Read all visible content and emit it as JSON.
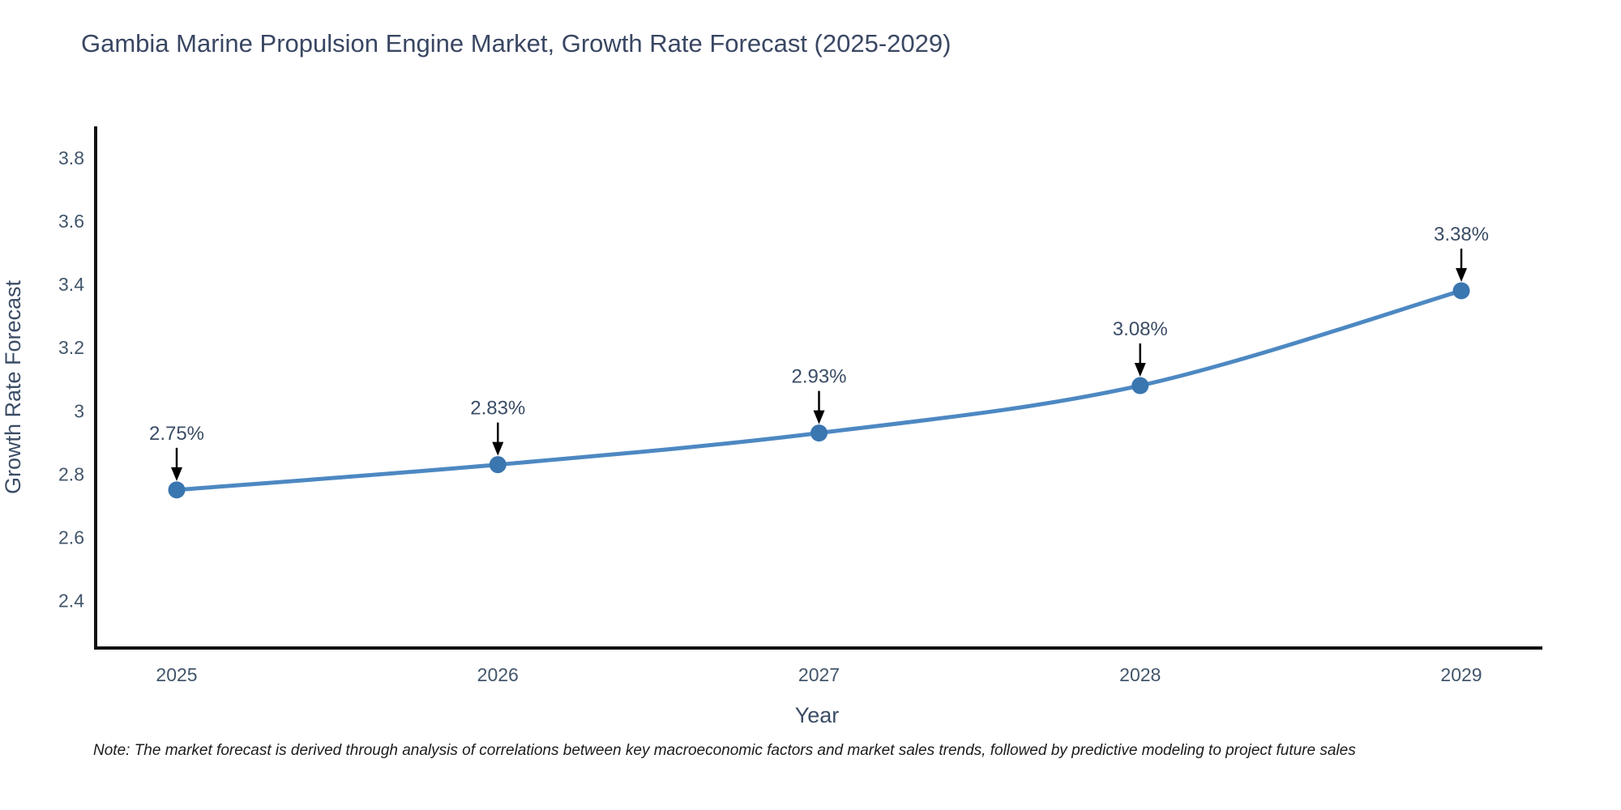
{
  "page": {
    "background": "#ffffff"
  },
  "chart_data": {
    "type": "line",
    "title": "Gambia Marine Propulsion Engine Market, Growth Rate Forecast (2025-2029)",
    "xlabel": "Year",
    "ylabel": "Growth Rate Forecast",
    "categories": [
      "2025",
      "2026",
      "2027",
      "2028",
      "2029"
    ],
    "series": [
      {
        "name": "Growth Rate Forecast",
        "values": [
          2.75,
          2.83,
          2.93,
          3.08,
          3.38
        ]
      }
    ],
    "point_labels": [
      "2.75%",
      "2.83%",
      "2.93%",
      "3.08%",
      "3.38%"
    ],
    "yticks": [
      2.4,
      2.6,
      2.8,
      3,
      3.2,
      3.4,
      3.6,
      3.8
    ],
    "ytick_labels": [
      "2.4",
      "2.6",
      "2.8",
      "3",
      "3.2",
      "3.4",
      "3.6",
      "3.8"
    ],
    "ylim": [
      2.25,
      3.9
    ],
    "grid": false,
    "legend": "none",
    "line_shape": "spline",
    "colors": {
      "line": "#4d88c2",
      "marker": "#3a76b0",
      "axis": "#111111",
      "text": "#3b4d66",
      "annotation_arrow": "#000000"
    },
    "note": "Note: The market forecast is derived through analysis of correlations between key macroeconomic factors and market sales trends, followed by predictive modeling to project future sales"
  }
}
